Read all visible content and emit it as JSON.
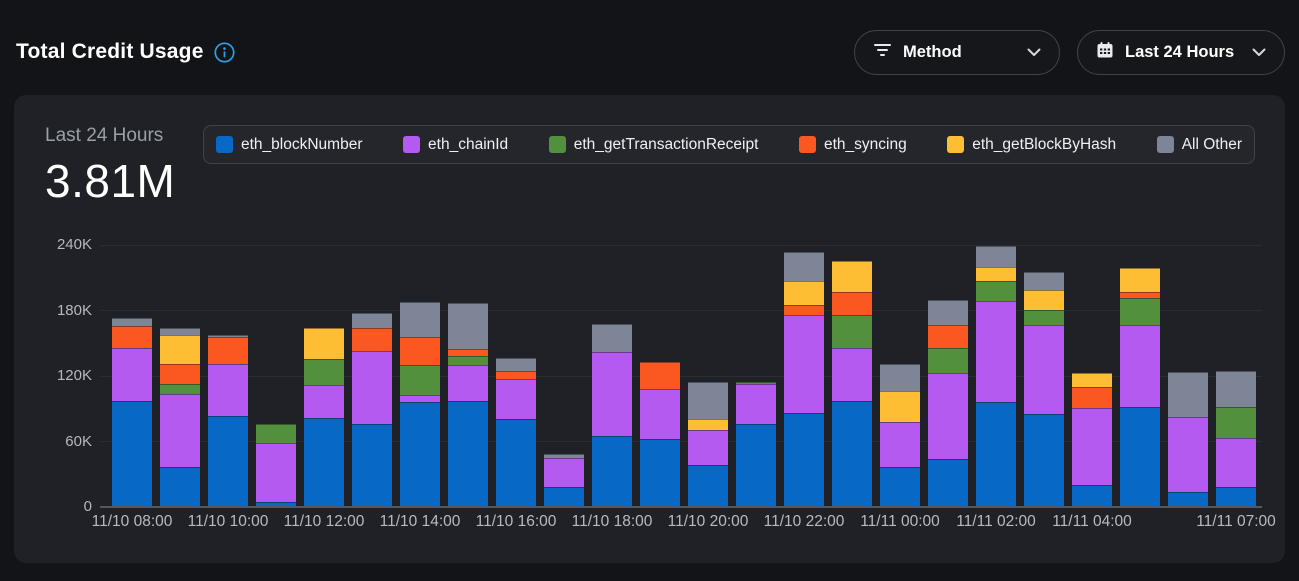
{
  "header": {
    "title": "Total Credit Usage",
    "filters": [
      {
        "label": "Method",
        "icon": "filter-icon"
      },
      {
        "label": "Last 24 Hours",
        "icon": "calendar-icon"
      }
    ]
  },
  "summary": {
    "period_label": "Last 24 Hours",
    "total_value": "3.81M"
  },
  "colors": {
    "accent_info": "#2e9fe6",
    "card_bg": "#1f2126",
    "page_bg": "#131418"
  },
  "chart_data": {
    "type": "bar",
    "stacked": true,
    "title": "Total Credit Usage",
    "xlabel": "",
    "ylabel": "",
    "ylim": [
      0,
      240000
    ],
    "grid": "horizontal",
    "legend_position": "top",
    "y_ticks": [
      {
        "value": 0,
        "label": "0"
      },
      {
        "value": 60000,
        "label": "60K"
      },
      {
        "value": 120000,
        "label": "120K"
      },
      {
        "value": 180000,
        "label": "180K"
      },
      {
        "value": 240000,
        "label": "240K"
      }
    ],
    "categories": [
      "11/10 08:00",
      "11/10 09:00",
      "11/10 10:00",
      "11/10 11:00",
      "11/10 12:00",
      "11/10 13:00",
      "11/10 14:00",
      "11/10 15:00",
      "11/10 16:00",
      "11/10 17:00",
      "11/10 18:00",
      "11/10 19:00",
      "11/10 20:00",
      "11/10 21:00",
      "11/10 22:00",
      "11/10 23:00",
      "11/11 00:00",
      "11/11 01:00",
      "11/11 02:00",
      "11/11 03:00",
      "11/11 04:00",
      "11/11 05:00",
      "11/11 06:00",
      "11/11 07:00"
    ],
    "x_tick_labels": [
      {
        "index": 0,
        "label": "11/10 08:00"
      },
      {
        "index": 2,
        "label": "11/10 10:00"
      },
      {
        "index": 4,
        "label": "11/10 12:00"
      },
      {
        "index": 6,
        "label": "11/10 14:00"
      },
      {
        "index": 8,
        "label": "11/10 16:00"
      },
      {
        "index": 10,
        "label": "11/10 18:00"
      },
      {
        "index": 12,
        "label": "11/10 20:00"
      },
      {
        "index": 14,
        "label": "11/10 22:00"
      },
      {
        "index": 16,
        "label": "11/11 00:00"
      },
      {
        "index": 18,
        "label": "11/11 02:00"
      },
      {
        "index": 20,
        "label": "11/11 04:00"
      },
      {
        "index": 23,
        "label": "11/11 07:00"
      }
    ],
    "series": [
      {
        "name": "eth_blockNumber",
        "color": "#0768C5",
        "values": [
          96000,
          36000,
          82000,
          4000,
          81000,
          75000,
          95000,
          96000,
          80000,
          17000,
          64000,
          61000,
          38000,
          75000,
          85000,
          96000,
          36000,
          43000,
          95000,
          84000,
          19000,
          91000,
          13000,
          17000
        ]
      },
      {
        "name": "eth_chainId",
        "color": "#B45AF0",
        "values": [
          49000,
          67000,
          48000,
          54000,
          30000,
          67000,
          7000,
          33000,
          36000,
          27000,
          77000,
          46000,
          32000,
          37000,
          90000,
          49000,
          41000,
          79000,
          93000,
          82000,
          71000,
          75000,
          69000,
          45000
        ]
      },
      {
        "name": "eth_getTransactionReceipt",
        "color": "#52903E",
        "values": [
          0,
          9000,
          0,
          17000,
          24000,
          0,
          27000,
          8000,
          0,
          0,
          0,
          0,
          0,
          2000,
          0,
          30000,
          0,
          23000,
          18000,
          14000,
          0,
          25000,
          0,
          29000
        ]
      },
      {
        "name": "eth_syncing",
        "color": "#FB5821",
        "values": [
          20000,
          18000,
          25000,
          0,
          0,
          21000,
          26000,
          7000,
          8000,
          0,
          0,
          25000,
          0,
          0,
          9000,
          21000,
          0,
          21000,
          0,
          0,
          19000,
          5000,
          0,
          0
        ]
      },
      {
        "name": "eth_getBlockByHash",
        "color": "#FDBE33",
        "values": [
          0,
          27000,
          0,
          0,
          28000,
          0,
          0,
          0,
          0,
          0,
          0,
          0,
          10000,
          0,
          22000,
          28000,
          28000,
          0,
          13000,
          18000,
          13000,
          22000,
          0,
          0
        ]
      },
      {
        "name": "All Other",
        "color": "#7D8596",
        "values": [
          7000,
          6000,
          2000,
          0,
          0,
          14000,
          32000,
          42000,
          12000,
          4000,
          26000,
          0,
          34000,
          0,
          27000,
          0,
          25000,
          23000,
          19000,
          16000,
          0,
          0,
          41000,
          33000
        ]
      }
    ]
  }
}
